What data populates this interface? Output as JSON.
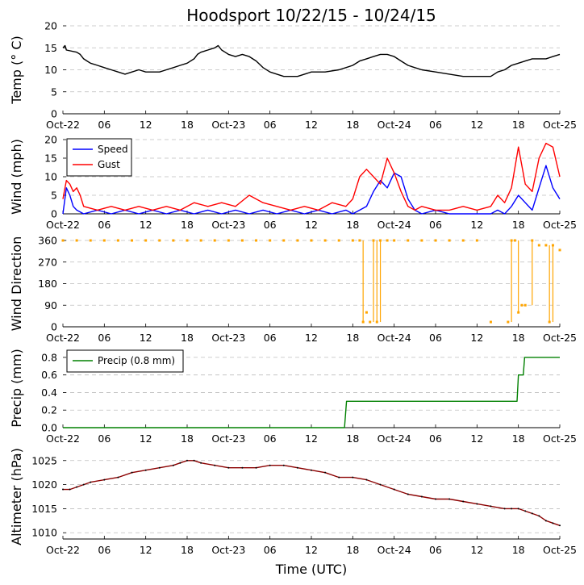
{
  "chart_data": [
    {
      "type": "line",
      "title": "Hoodsport 10/22/15 - 10/24/15",
      "ylabel": "Temp ($^\\circ$C)",
      "ylim": [
        0,
        20
      ],
      "yticks": [
        0,
        5,
        10,
        15,
        20
      ],
      "xlim_hours": [
        0,
        72
      ],
      "xtick_labels": [
        "Oct-22",
        "06",
        "12",
        "18",
        "Oct-23",
        "06",
        "12",
        "18",
        "Oct-24",
        "06",
        "12",
        "18",
        "Oct-25"
      ],
      "grid": "horizontal dashed",
      "series": [
        {
          "color": "#000000",
          "x": [
            0,
            0.3,
            0.5,
            2,
            2.5,
            3,
            3.5,
            4,
            5,
            6,
            7,
            8,
            9,
            10,
            11,
            12,
            14,
            15,
            16,
            17,
            18,
            19,
            19.5,
            20,
            21,
            22,
            22.5,
            23,
            23.5,
            24,
            25,
            26,
            27,
            28,
            29,
            30,
            31,
            32,
            34,
            36,
            38,
            40,
            41,
            42,
            43,
            44,
            45,
            46,
            47,
            48,
            49,
            50,
            51,
            52,
            54,
            56,
            58,
            60,
            62,
            63,
            64,
            65,
            66,
            67,
            68,
            69,
            70,
            71,
            72
          ],
          "y": [
            15,
            15.5,
            14.5,
            14,
            13.5,
            12.5,
            12,
            11.5,
            11,
            10.5,
            10,
            9.5,
            9,
            9.5,
            10,
            9.5,
            9.5,
            10,
            10.5,
            11,
            11.5,
            12.5,
            13.5,
            14,
            14.5,
            15,
            15.5,
            14.5,
            14,
            13.5,
            13,
            13.5,
            13,
            12,
            10.5,
            9.5,
            9,
            8.5,
            8.5,
            9.5,
            9.5,
            10,
            10.5,
            11,
            12,
            12.5,
            13,
            13.5,
            13.5,
            13,
            12,
            11,
            10.5,
            10,
            9.5,
            9,
            8.5,
            8.5,
            8.5,
            9.5,
            10,
            11,
            11.5,
            12,
            12.5,
            12.5,
            12.5,
            13,
            13.5
          ]
        }
      ]
    },
    {
      "type": "line",
      "ylabel": "Wind (mph)",
      "ylim": [
        0,
        20
      ],
      "yticks": [
        0,
        5,
        10,
        15,
        20
      ],
      "xlim_hours": [
        0,
        72
      ],
      "legend": "upper-left",
      "grid": "horizontal dashed",
      "series": [
        {
          "name": "Speed",
          "color": "#0000ff",
          "x": [
            0,
            0.5,
            1,
            1.5,
            2,
            3,
            5,
            7,
            9,
            11,
            13,
            15,
            17,
            19,
            21,
            23,
            25,
            27,
            29,
            31,
            33,
            35,
            37,
            39,
            41,
            42,
            43,
            44,
            45,
            46,
            47,
            48,
            49,
            50,
            51,
            52,
            54,
            56,
            58,
            60,
            62,
            63,
            64,
            65,
            66,
            67,
            68,
            69,
            70,
            71,
            72
          ],
          "y": [
            0,
            7,
            5,
            2,
            1,
            0,
            1,
            0,
            1,
            0,
            1,
            0,
            1,
            0,
            1,
            0,
            1,
            0,
            1,
            0,
            1,
            0,
            1,
            0,
            1,
            0,
            1,
            2,
            6,
            9,
            7,
            11,
            10,
            4,
            1,
            0,
            1,
            0,
            0,
            0,
            0,
            1,
            0,
            2,
            5,
            3,
            1,
            7,
            13,
            7,
            4
          ]
        },
        {
          "name": "Gust",
          "color": "#ff0000",
          "x": [
            0,
            0.5,
            1,
            1.5,
            2,
            2.5,
            3,
            5,
            7,
            9,
            11,
            13,
            15,
            17,
            19,
            21,
            23,
            25,
            27,
            29,
            31,
            33,
            35,
            37,
            39,
            41,
            42,
            43,
            44,
            45,
            46,
            47,
            48,
            49,
            50,
            51,
            52,
            54,
            56,
            58,
            60,
            62,
            63,
            64,
            65,
            66,
            67,
            68,
            69,
            70,
            71,
            72
          ],
          "y": [
            4,
            9,
            8,
            6,
            7,
            5,
            2,
            1,
            2,
            1,
            2,
            1,
            2,
            1,
            3,
            2,
            3,
            2,
            5,
            3,
            2,
            1,
            2,
            1,
            3,
            2,
            4,
            10,
            12,
            10,
            8,
            15,
            11,
            6,
            2,
            1,
            2,
            1,
            1,
            2,
            1,
            2,
            5,
            3,
            7,
            18,
            8,
            6,
            15,
            19,
            18,
            10
          ]
        }
      ]
    },
    {
      "type": "scatter",
      "ylabel": "Wind Direction",
      "ylim": [
        0,
        360
      ],
      "yticks": [
        0,
        90,
        180,
        270,
        360
      ],
      "xlim_hours": [
        0,
        72
      ],
      "grid": "horizontal dashed",
      "series": [
        {
          "color": "#ffa500",
          "x": [
            0,
            2,
            4,
            6,
            8,
            10,
            12,
            14,
            16,
            18,
            20,
            22,
            24,
            26,
            28,
            30,
            32,
            34,
            36,
            38,
            40,
            42,
            43,
            43.5,
            44,
            44.5,
            45,
            45.5,
            46,
            47,
            48,
            50,
            52,
            54,
            56,
            58,
            60,
            62,
            64.5,
            65,
            65.5,
            66,
            66.5,
            67,
            68,
            69,
            70,
            70.5,
            71,
            72
          ],
          "y": [
            360,
            360,
            360,
            360,
            360,
            360,
            360,
            360,
            360,
            360,
            360,
            360,
            360,
            360,
            360,
            360,
            360,
            360,
            360,
            360,
            360,
            360,
            360,
            20,
            60,
            20,
            360,
            20,
            360,
            360,
            360,
            360,
            360,
            360,
            360,
            360,
            360,
            20,
            20,
            360,
            360,
            60,
            90,
            90,
            360,
            340,
            340,
            20,
            340,
            320
          ]
        }
      ]
    },
    {
      "type": "line",
      "ylabel": "Precip (mm)",
      "ylim": [
        0,
        0.9
      ],
      "yticks": [
        0.0,
        0.2,
        0.4,
        0.6,
        0.8
      ],
      "ytick_labels": [
        "0.0",
        "0.2",
        "0.4",
        "0.6",
        "0.8"
      ],
      "xlim_hours": [
        0,
        72
      ],
      "legend": "upper-left",
      "grid": "horizontal dashed",
      "series": [
        {
          "name": "Precip (0.8 mm)",
          "color": "#008000",
          "x": [
            0,
            40.8,
            41.1,
            65.8,
            66.0,
            66.7,
            66.9,
            72
          ],
          "y": [
            0,
            0,
            0.3,
            0.3,
            0.6,
            0.6,
            0.8,
            0.8
          ]
        }
      ]
    },
    {
      "type": "line",
      "ylabel": "Altimeter (hPa)",
      "xlabel": "Time (UTC)",
      "ylim": [
        1008.7,
        1026.3
      ],
      "yticks": [
        1010,
        1015,
        1020,
        1025
      ],
      "xlim_hours": [
        0,
        72
      ],
      "grid": "horizontal dashed",
      "series": [
        {
          "color": "#8b0000",
          "x": [
            0,
            1,
            2,
            3,
            4,
            6,
            8,
            10,
            12,
            14,
            16,
            17,
            18,
            19,
            20,
            22,
            24,
            26,
            28,
            30,
            32,
            34,
            36,
            38,
            40,
            42,
            44,
            46,
            48,
            50,
            52,
            54,
            56,
            58,
            60,
            62,
            64,
            65,
            66,
            67,
            68,
            69,
            70,
            71,
            72
          ],
          "y": [
            1019,
            1019,
            1019.5,
            1020,
            1020.5,
            1021,
            1021.5,
            1022.5,
            1023,
            1023.5,
            1024,
            1024.5,
            1025,
            1025,
            1024.5,
            1024,
            1023.5,
            1023.5,
            1023.5,
            1024,
            1024,
            1023.5,
            1023,
            1022.5,
            1021.5,
            1021.5,
            1021,
            1020,
            1019,
            1018,
            1017.5,
            1017,
            1017,
            1016.5,
            1016,
            1015.5,
            1015,
            1015,
            1015,
            1014.5,
            1014,
            1013.5,
            1012.5,
            1012,
            1011.5
          ]
        }
      ]
    }
  ]
}
